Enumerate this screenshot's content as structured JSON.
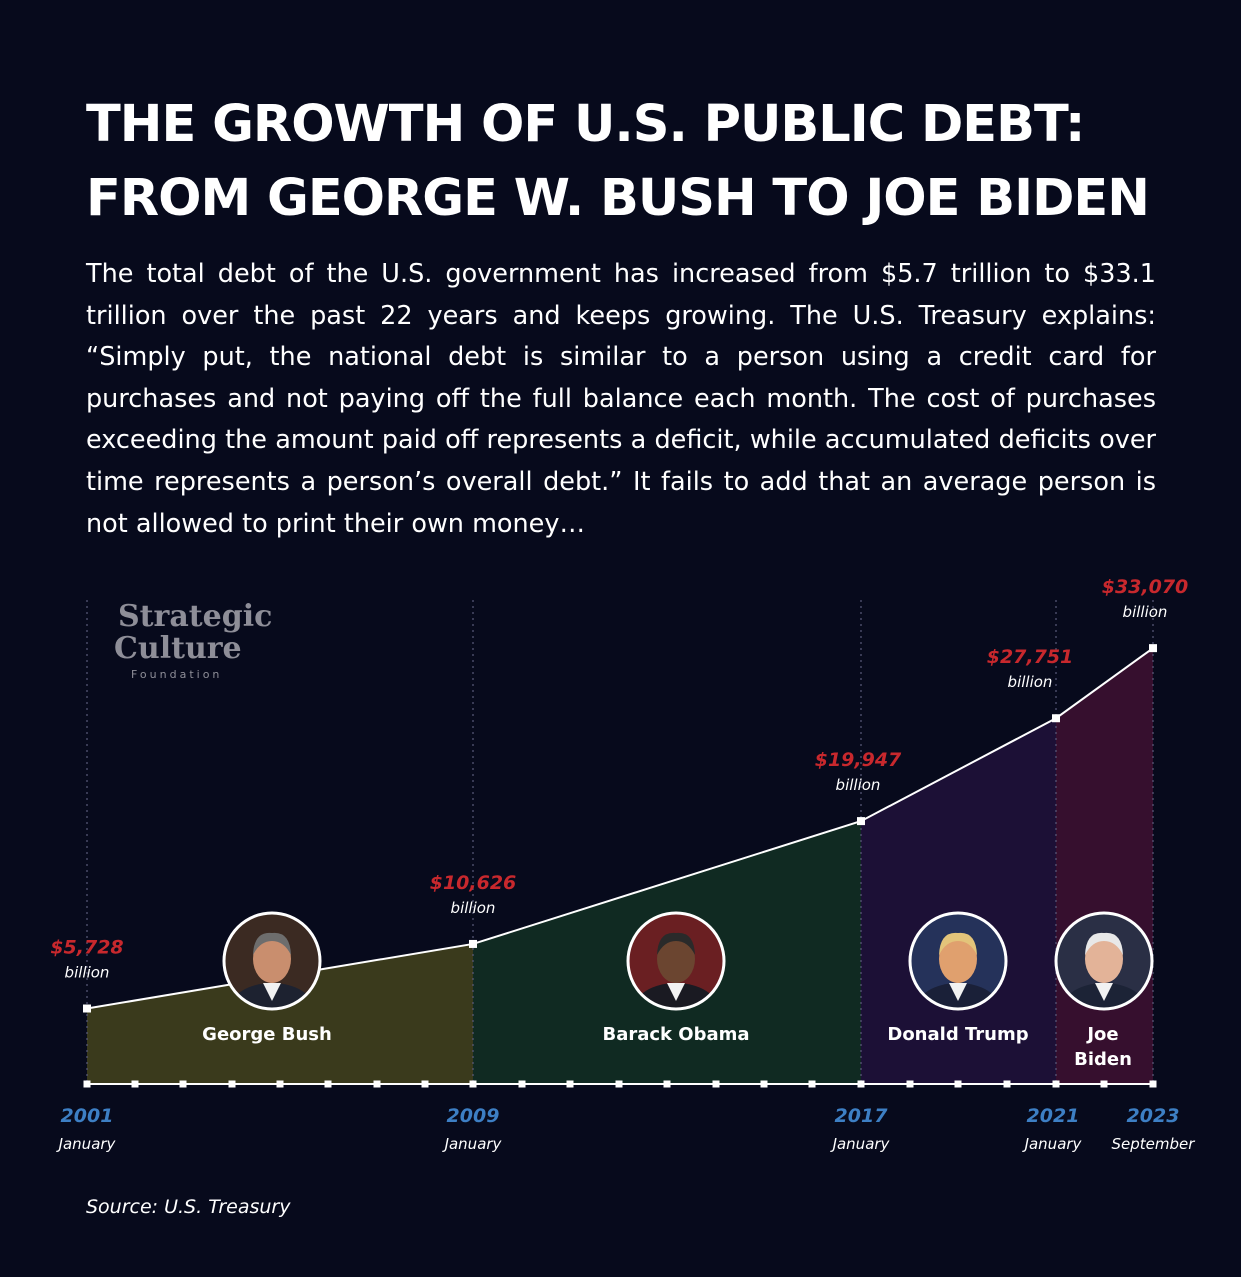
{
  "title_line1": "THE GROWTH OF U.S. PUBLIC DEBT:",
  "title_line2": "FROM GEORGE W. BUSH TO JOE BIDEN",
  "description": "The total debt of the U.S. government has increased from $5.7 trillion to $33.1 trillion over the past 22 years and keeps growing. The U.S. Treasury explains: “Simply put, the national debt is similar to a person using a credit card for purchases and not paying off the full balance each month. The cost of purchases exceeding the amount paid off represents a deficit, while accumulated deficits over time represents a person’s overall debt.” It fails to add that an average person is not allowed to print their own money…",
  "source": "Source: U.S. Treasury",
  "logo": {
    "line1": "Strategic",
    "line2": "Culture",
    "line3": "Foundation"
  },
  "colors": {
    "background": "#070a1c",
    "bush": "#3a3a1c",
    "obama": "#102a22",
    "trump": "#1c1036",
    "biden": "#360f2e",
    "value_label": "#c8282d",
    "year_label": "#3d7fc4"
  },
  "chart_data": {
    "type": "area",
    "unit_label": "billion",
    "points": [
      {
        "year": "2001",
        "month": "January",
        "value": 5728,
        "value_label": "$5,728"
      },
      {
        "year": "2009",
        "month": "January",
        "value": 10626,
        "value_label": "$10,626"
      },
      {
        "year": "2017",
        "month": "January",
        "value": 19947,
        "value_label": "$19,947"
      },
      {
        "year": "2021",
        "month": "January",
        "value": 27751,
        "value_label": "$27,751"
      },
      {
        "year": "2023",
        "month": "September",
        "value": 33070,
        "value_label": "$33,070"
      }
    ],
    "segments": [
      {
        "name": "George Bush",
        "from": 0,
        "to": 1,
        "icon": "george-bush-portrait-icon"
      },
      {
        "name": "Barack Obama",
        "from": 1,
        "to": 2,
        "icon": "barack-obama-portrait-icon"
      },
      {
        "name": "Donald Trump",
        "from": 2,
        "to": 3,
        "icon": "donald-trump-portrait-icon"
      },
      {
        "name": "Joe\nBiden",
        "from": 3,
        "to": 4,
        "icon": "joe-biden-portrait-icon"
      }
    ]
  }
}
